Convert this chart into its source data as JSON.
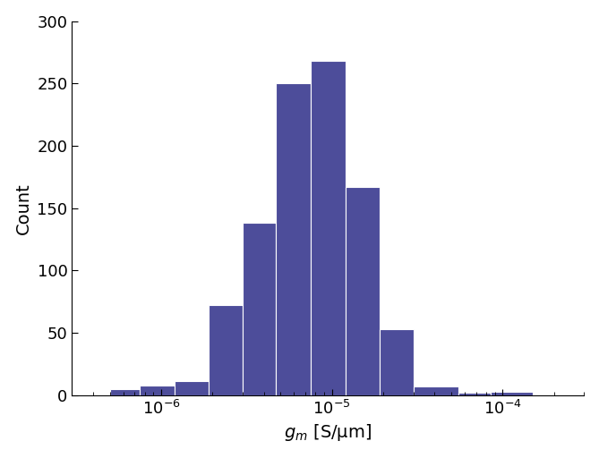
{
  "bar_color": "#4d4d9a",
  "ylabel": "Count",
  "xlabel_units": " [S/μm]",
  "ylim": [
    0,
    300
  ],
  "yticks": [
    0,
    50,
    100,
    150,
    200,
    250,
    300
  ],
  "xlim": [
    3e-07,
    0.0003
  ],
  "background_color": "#ffffff",
  "bin_edges": [
    5e-07,
    7.5e-07,
    1.2e-06,
    1.9e-06,
    3e-06,
    4.7e-06,
    7.5e-06,
    1.2e-05,
    1.9e-05,
    3e-05,
    5.5e-05,
    8.5e-05,
    0.00015
  ],
  "counts": [
    5,
    8,
    11,
    72,
    138,
    250,
    268,
    167,
    53,
    7,
    2,
    3
  ],
  "ylabel_fontsize": 14,
  "xlabel_fontsize": 14,
  "tick_labelsize": 13
}
